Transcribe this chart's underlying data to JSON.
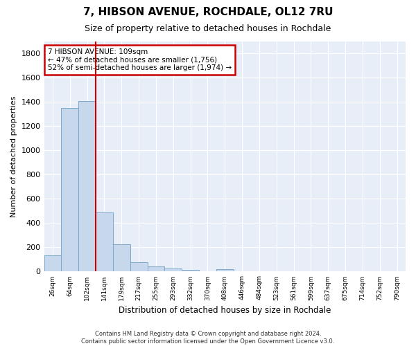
{
  "title": "7, HIBSON AVENUE, ROCHDALE, OL12 7RU",
  "subtitle": "Size of property relative to detached houses in Rochdale",
  "xlabel": "Distribution of detached houses by size in Rochdale",
  "ylabel": "Number of detached properties",
  "categories": [
    "26sqm",
    "64sqm",
    "102sqm",
    "141sqm",
    "179sqm",
    "217sqm",
    "255sqm",
    "293sqm",
    "332sqm",
    "370sqm",
    "408sqm",
    "446sqm",
    "484sqm",
    "523sqm",
    "561sqm",
    "599sqm",
    "637sqm",
    "675sqm",
    "714sqm",
    "752sqm",
    "790sqm"
  ],
  "values": [
    135,
    1350,
    1410,
    490,
    225,
    75,
    45,
    28,
    12,
    0,
    20,
    0,
    0,
    0,
    0,
    0,
    0,
    0,
    0,
    0,
    0
  ],
  "bar_color": "#c8d8ec",
  "bar_edge_color": "#7aa8cc",
  "property_line_color": "#cc0000",
  "annotation_text": "7 HIBSON AVENUE: 109sqm\n← 47% of detached houses are smaller (1,756)\n52% of semi-detached houses are larger (1,974) →",
  "annotation_box_color": "#cc0000",
  "ylim": [
    0,
    1900
  ],
  "yticks": [
    0,
    200,
    400,
    600,
    800,
    1000,
    1200,
    1400,
    1600,
    1800
  ],
  "background_color": "#e8eef8",
  "footer_text": "Contains HM Land Registry data © Crown copyright and database right 2024.\nContains public sector information licensed under the Open Government Licence v3.0.",
  "title_fontsize": 11,
  "subtitle_fontsize": 9,
  "property_bin_index": 2
}
